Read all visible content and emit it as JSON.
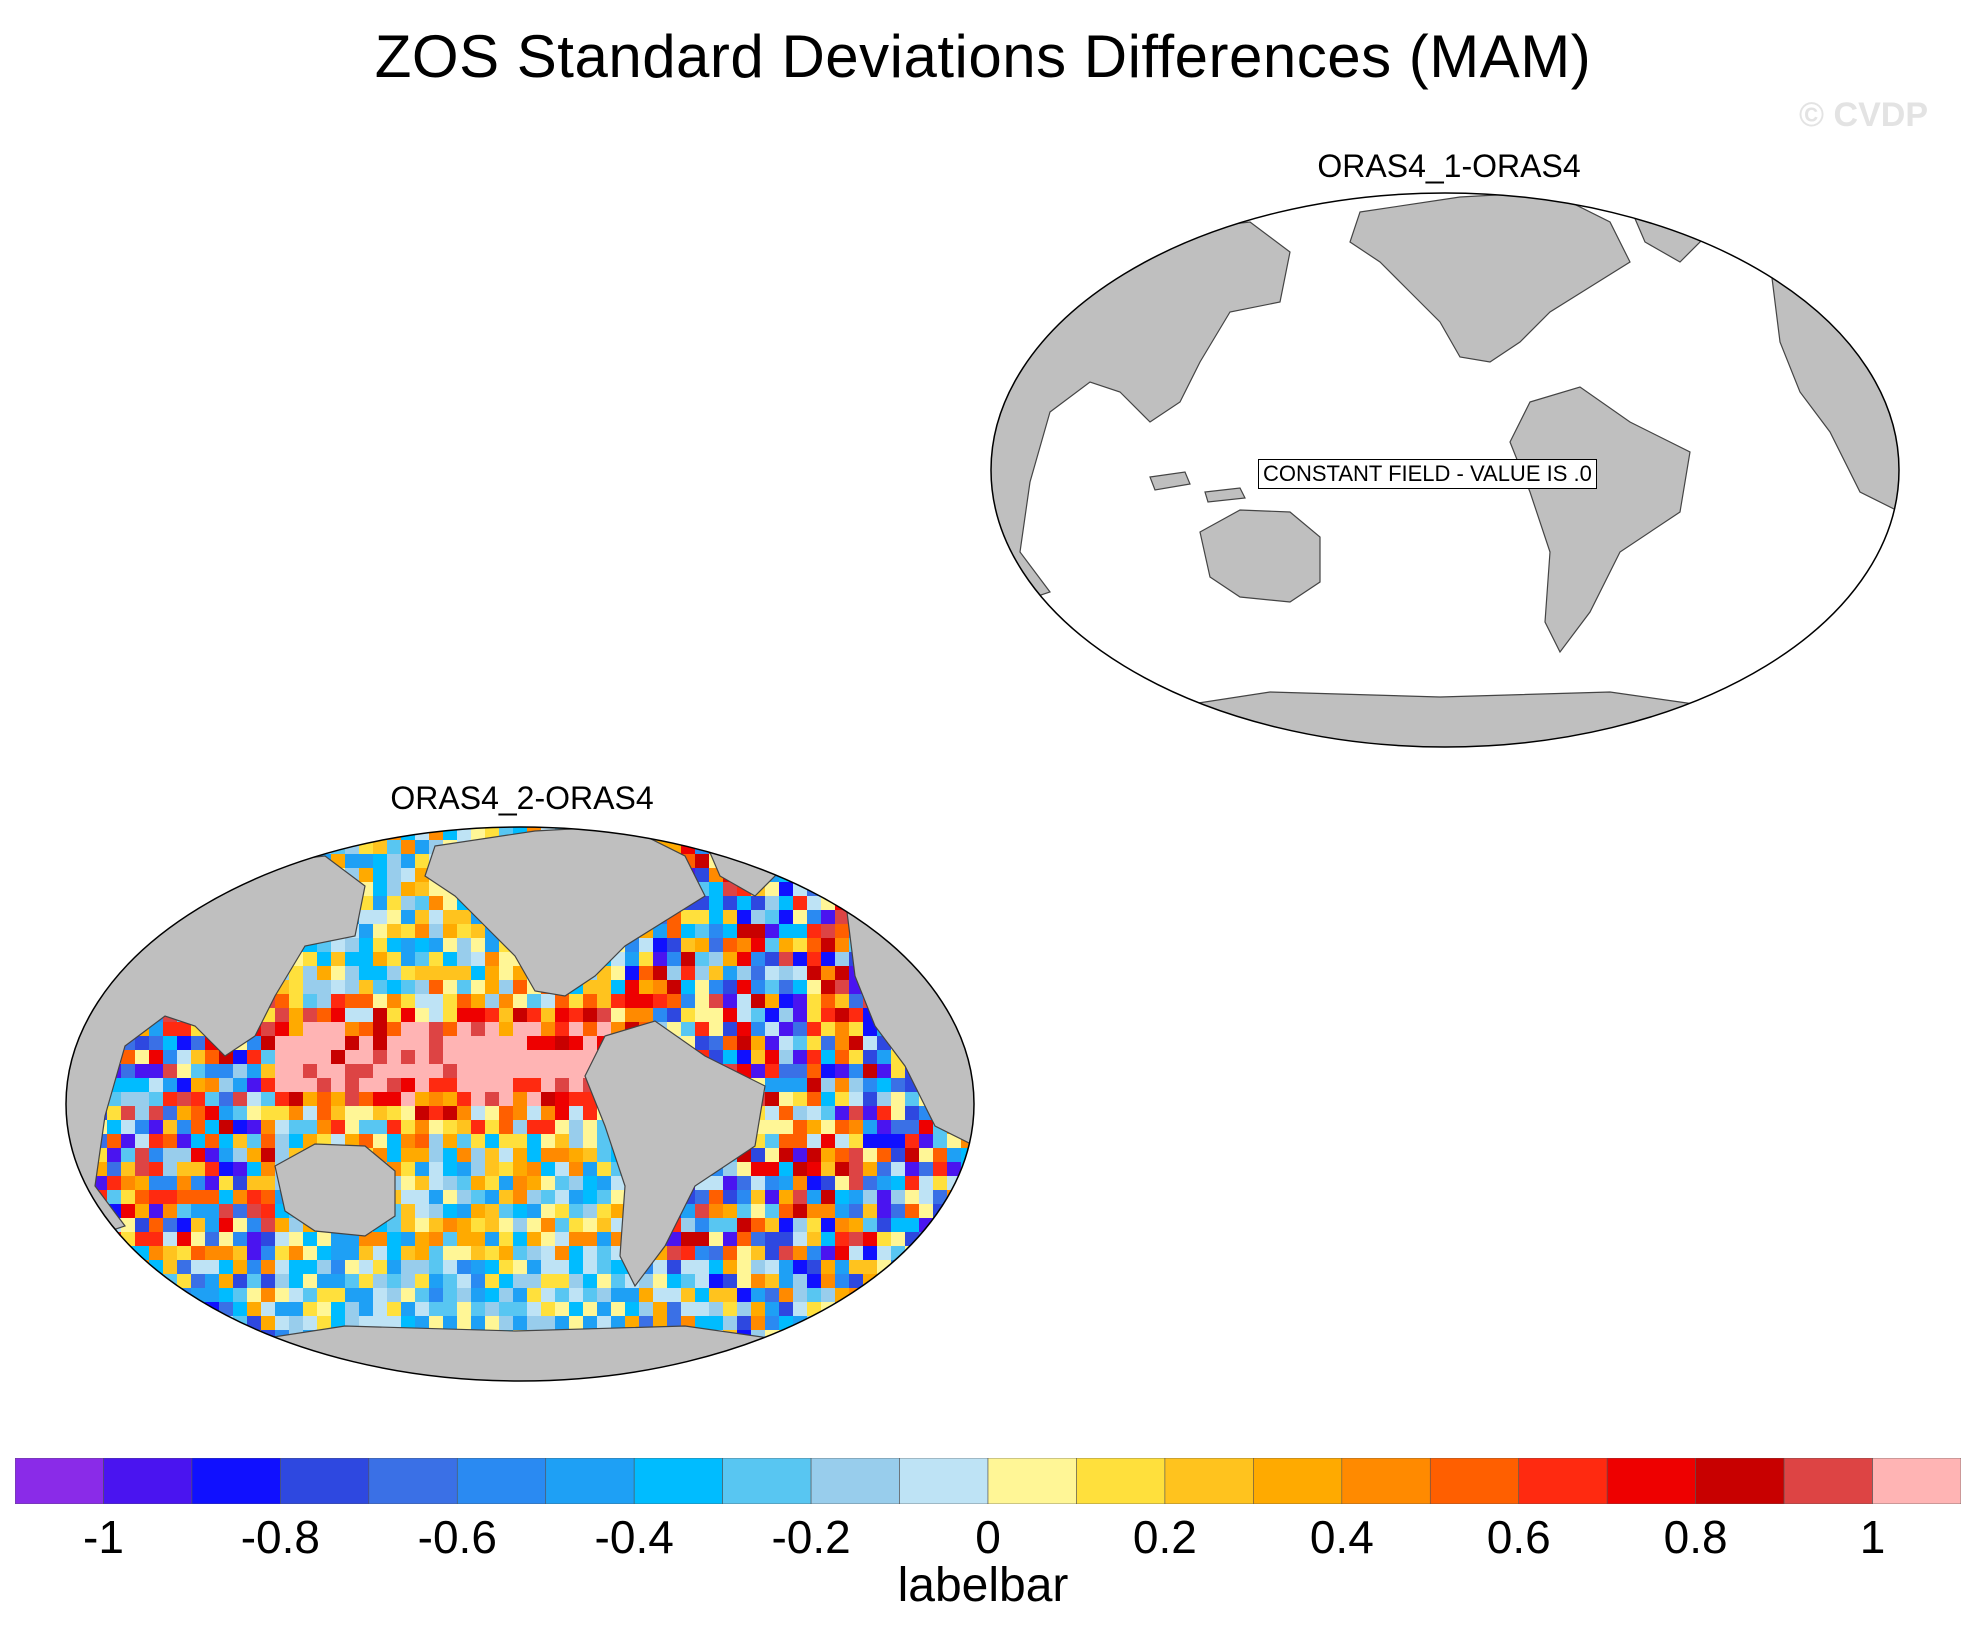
{
  "title": "ZOS Standard Deviations Differences (MAM)",
  "watermark": "© CVDP",
  "panels": [
    {
      "title": "ORAS4_1-ORAS4",
      "note": "CONSTANT FIELD - VALUE IS .0"
    },
    {
      "title": "ORAS4_2-ORAS4"
    }
  ],
  "colorbar": {
    "label": "labelbar",
    "colors": [
      "#8a2be8",
      "#4a14f0",
      "#1010ff",
      "#2e48e0",
      "#3a70e6",
      "#2a8af2",
      "#1ea0f5",
      "#00bcff",
      "#58c6f2",
      "#98cdec",
      "#bee3f5",
      "#fff696",
      "#ffe03c",
      "#ffc31e",
      "#ffaa00",
      "#ff8a00",
      "#ff5f00",
      "#ff2a10",
      "#ee0000",
      "#c80000",
      "#dd4444",
      "#ffb4b4"
    ],
    "ticks": [
      "-1",
      "-0.8",
      "-0.6",
      "-0.4",
      "-0.2",
      "0",
      "0.2",
      "0.4",
      "0.6",
      "0.8",
      "1"
    ]
  },
  "colors": {
    "land": "#bfbfbf",
    "ocean_blank": "#ffffff"
  }
}
